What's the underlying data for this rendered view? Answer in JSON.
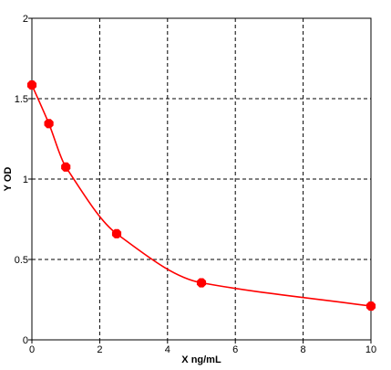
{
  "chart_data": {
    "type": "scatter",
    "title": "",
    "xlabel": "X ng/mL",
    "ylabel": "Y OD",
    "xlim": [
      0,
      10
    ],
    "ylim": [
      0,
      2
    ],
    "xticks": [
      0,
      2,
      4,
      6,
      8,
      10
    ],
    "yticks": [
      0,
      0.5,
      1,
      1.5,
      2
    ],
    "xtick_labels": [
      "0",
      "2",
      "4",
      "6",
      "8",
      "10"
    ],
    "ytick_labels": [
      "0",
      "0.5",
      "1",
      "1.5",
      "2"
    ],
    "grid": true,
    "grid_style": "dashed",
    "series": [
      {
        "x": [
          0,
          0.5,
          1,
          2.5,
          5,
          10
        ],
        "y": [
          1.585,
          1.345,
          1.075,
          0.66,
          0.355,
          0.21
        ],
        "color": "#ff0000",
        "marker": "octagon",
        "fit_line": "smooth"
      }
    ]
  }
}
